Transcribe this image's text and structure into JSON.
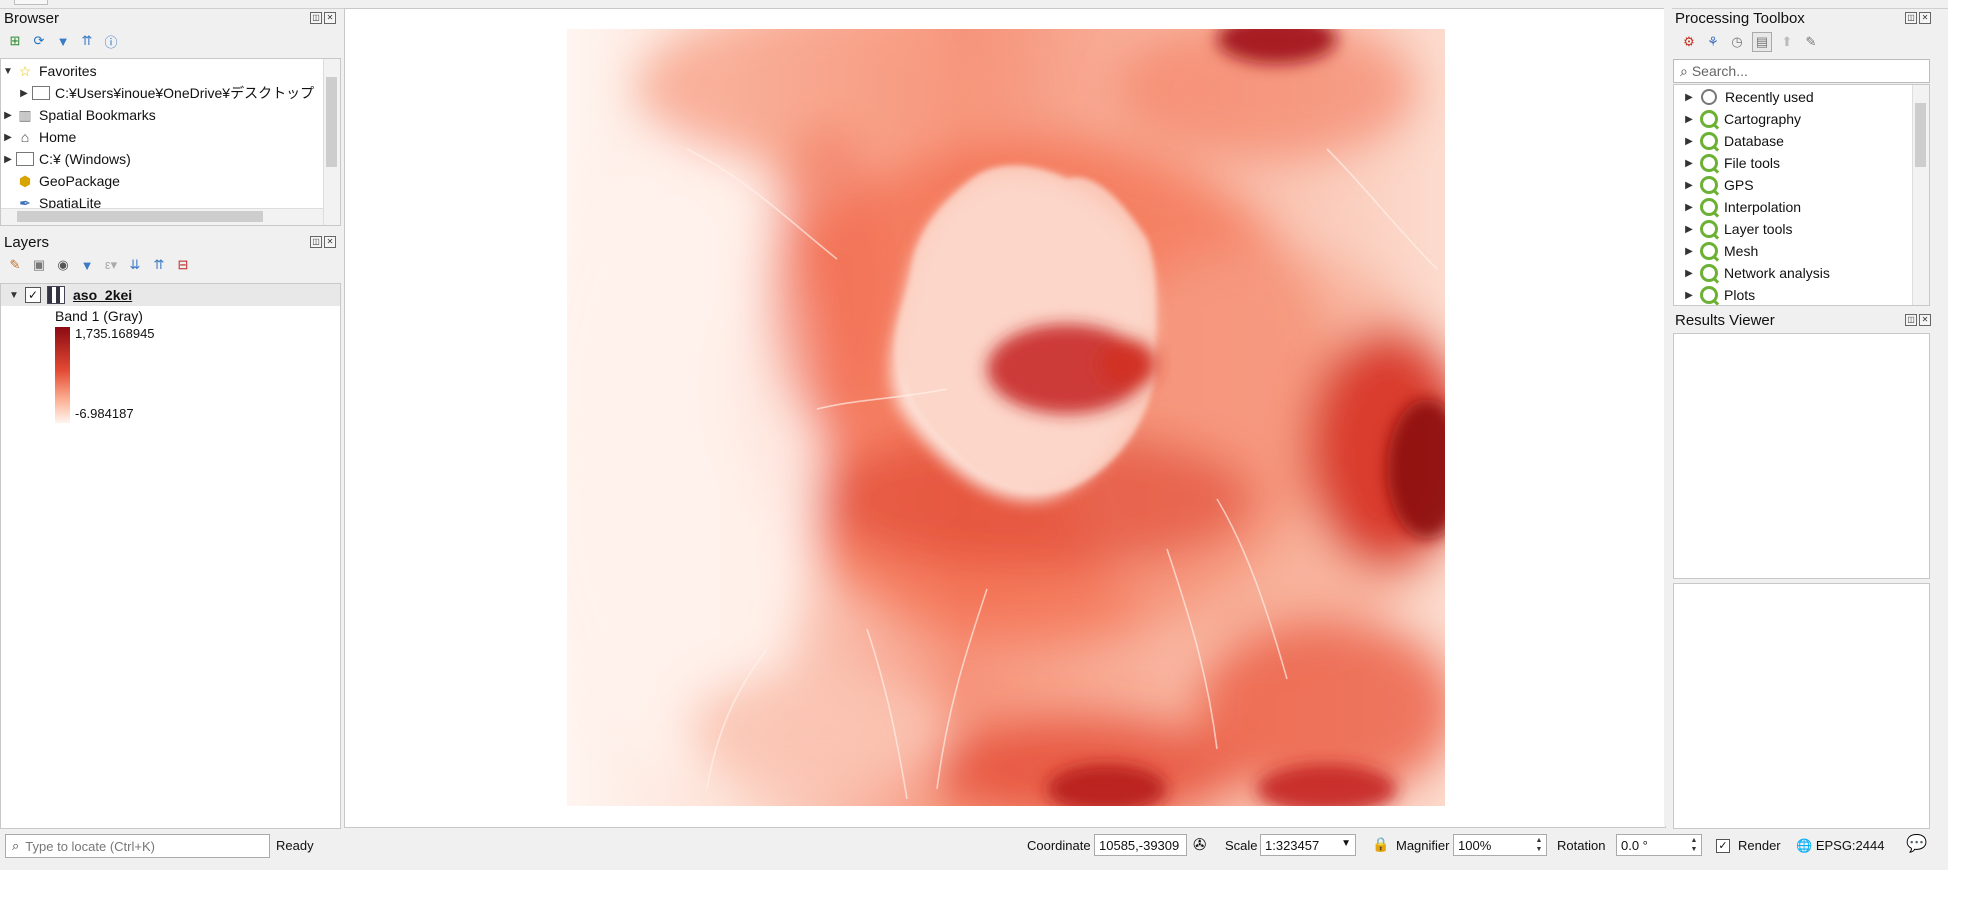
{
  "browser": {
    "title": "Browser",
    "items": [
      {
        "label": "Favorites",
        "icon": "star-icon"
      },
      {
        "label": "C:¥Users¥inoue¥OneDrive¥デスクトップ",
        "icon": "folder-icon"
      },
      {
        "label": "Spatial Bookmarks",
        "icon": "bookmark-icon"
      },
      {
        "label": "Home",
        "icon": "home-icon"
      },
      {
        "label": "C:¥ (Windows)",
        "icon": "folder-icon"
      },
      {
        "label": "GeoPackage",
        "icon": "geopackage-icon"
      },
      {
        "label": "SpatiaLite",
        "icon": "spatialite-icon"
      }
    ]
  },
  "layers": {
    "title": "Layers",
    "layer_name": "aso_2kei",
    "band": "Band 1 (Gray)",
    "max": "1,735.168945",
    "min": "-6.984187",
    "ramp_top_color": "#8b0a12",
    "ramp_bottom_color": "#fff5f0"
  },
  "toolbox": {
    "title": "Processing Toolbox",
    "search_placeholder": "Search...",
    "items": [
      "Recently used",
      "Cartography",
      "Database",
      "File tools",
      "GPS",
      "Interpolation",
      "Layer tools",
      "Mesh",
      "Network analysis",
      "Plots"
    ]
  },
  "results": {
    "title": "Results Viewer"
  },
  "statusbar": {
    "locate_placeholder": "Type to locate (Ctrl+K)",
    "status": "Ready",
    "coordinate_label": "Coordinate",
    "coordinate_value": "10585,-39309",
    "scale_label": "Scale",
    "scale_value": "1:323457",
    "magnifier_label": "Magnifier",
    "magnifier_value": "100%",
    "rotation_label": "Rotation",
    "rotation_value": "0.0 °",
    "render_label": "Render",
    "crs": "EPSG:2444"
  }
}
